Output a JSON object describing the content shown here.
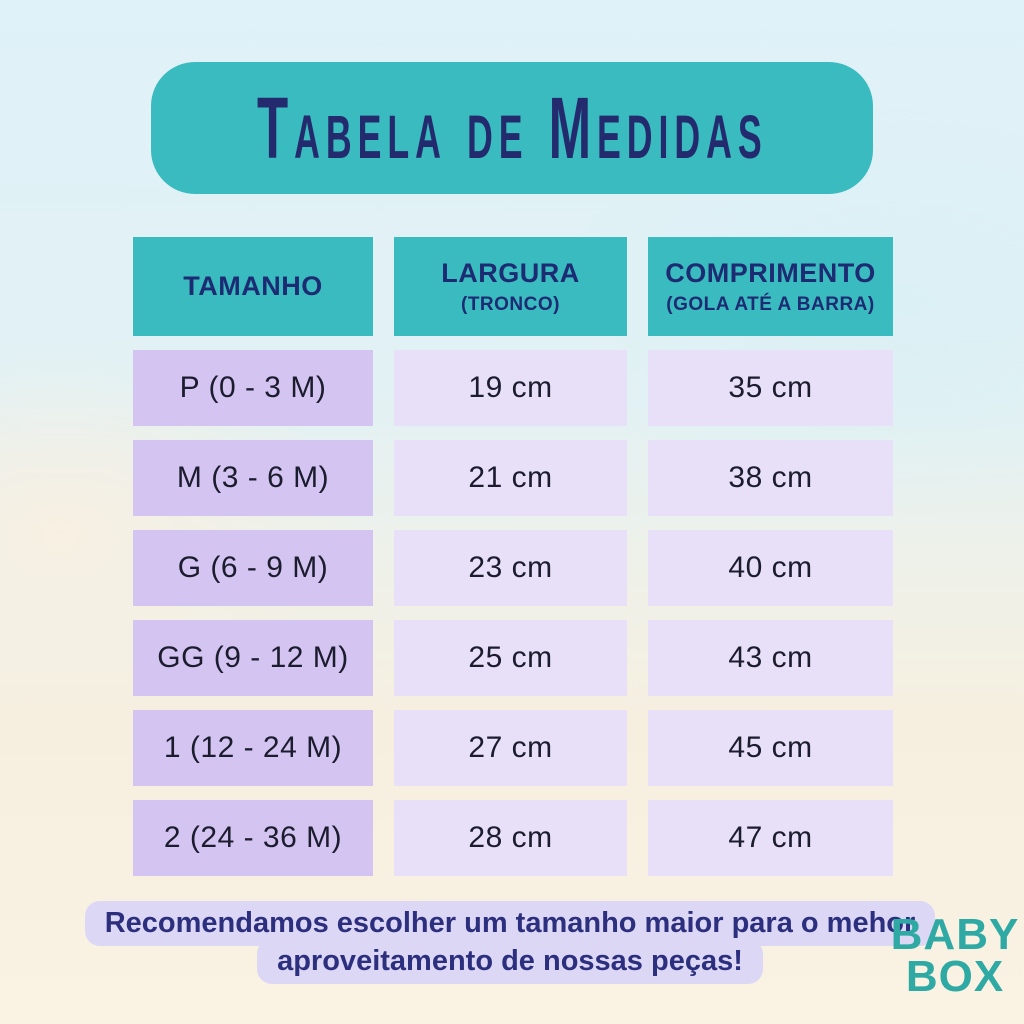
{
  "title": "Tabela de Medidas",
  "table": {
    "headers": [
      {
        "line1": "TAMANHO",
        "line2": ""
      },
      {
        "line1": "LARGURA",
        "line2": "(TRONCO)"
      },
      {
        "line1": "COMPRIMENTO",
        "line2": "(GOLA ATÉ A BARRA)"
      }
    ],
    "rows": [
      {
        "size": "P (0 - 3 M)",
        "width": "19 cm",
        "length": "35 cm"
      },
      {
        "size": "M (3 - 6 M)",
        "width": "21 cm",
        "length": "38 cm"
      },
      {
        "size": "G (6 - 9 M)",
        "width": "23 cm",
        "length": "40 cm"
      },
      {
        "size": "GG (9 - 12 M)",
        "width": "25 cm",
        "length": "43 cm"
      },
      {
        "size": "1 (12 - 24 M)",
        "width": "27 cm",
        "length": "45 cm"
      },
      {
        "size": "2 (24 - 36 M)",
        "width": "28 cm",
        "length": "47 cm"
      }
    ]
  },
  "note": {
    "line1": "Recomendamos escolher um tamanho maior para o mehor",
    "line2": "aproveitamento de nossas peças!"
  },
  "logo": {
    "line1": "BABY",
    "line2": "BOX"
  },
  "colors": {
    "teal": "#3ABBBF",
    "navy": "#232B6E",
    "purple_size_column": "#D4C4F1",
    "purple_value_column": "#E8DFF8",
    "note_highlight": "#DCD7F5",
    "logo_teal": "#2EA9A4",
    "background_top": "#DFF1F9",
    "background_bottom": "#FAF2E2"
  },
  "chart_data": {
    "type": "table",
    "title": "Tabela de Medidas",
    "columns": [
      "TAMANHO",
      "LARGURA (TRONCO)",
      "COMPRIMENTO (GOLA ATÉ A BARRA)"
    ],
    "rows": [
      [
        "P (0 - 3 M)",
        "19 cm",
        "35 cm"
      ],
      [
        "M (3 - 6 M)",
        "21 cm",
        "38 cm"
      ],
      [
        "G (6 - 9 M)",
        "23 cm",
        "40 cm"
      ],
      [
        "GG (9 - 12 M)",
        "25 cm",
        "43 cm"
      ],
      [
        "1 (12 - 24 M)",
        "27 cm",
        "45 cm"
      ],
      [
        "2 (24 - 36 M)",
        "28 cm",
        "47 cm"
      ]
    ],
    "units": "cm",
    "note": "Recomendamos escolher um tamanho maior para o mehor aproveitamento de nossas peças!",
    "brand": "BABY BOX"
  }
}
